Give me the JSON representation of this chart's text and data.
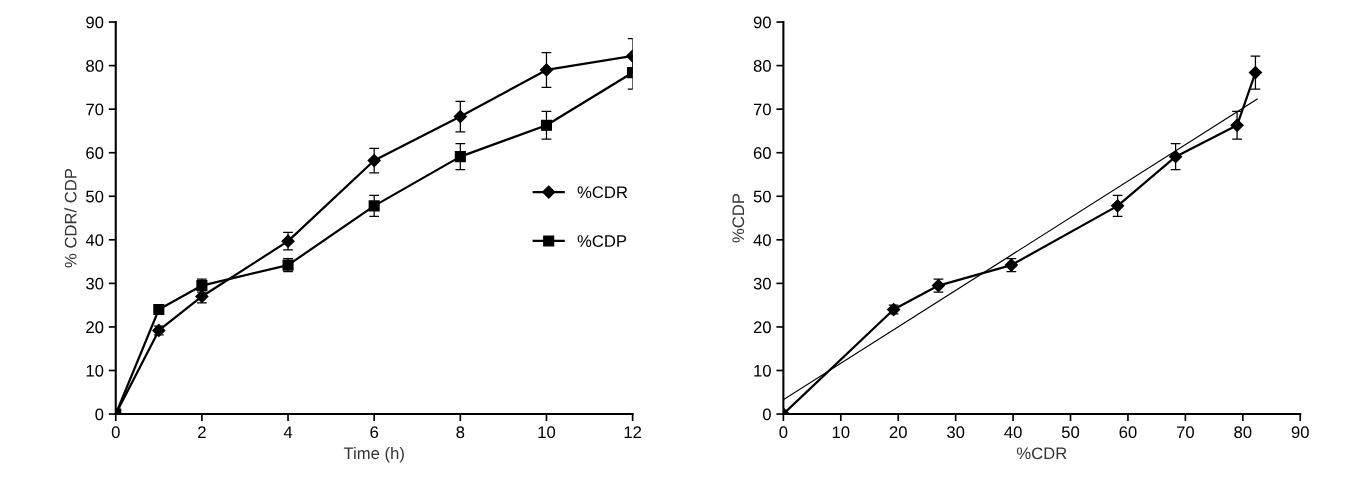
{
  "chart_data": [
    {
      "type": "line",
      "xlabel": "Time (h)",
      "ylabel": "% CDR/ CDP",
      "x": [
        0,
        1,
        2,
        4,
        6,
        8,
        10,
        12
      ],
      "xlim": [
        0,
        12
      ],
      "xticks": [
        0,
        2,
        4,
        6,
        8,
        10,
        12
      ],
      "ylim": [
        0,
        90
      ],
      "yticks": [
        0,
        10,
        20,
        30,
        40,
        50,
        60,
        70,
        80,
        90
      ],
      "grid": false,
      "legend": "right",
      "series": [
        {
          "name": "%CDR",
          "color": "#000000",
          "marker": "diamond",
          "values": [
            0,
            19.2,
            27,
            39.7,
            58.2,
            68.3,
            79,
            82.2
          ],
          "errors": [
            null,
            1,
            1.5,
            2,
            2.8,
            3.5,
            4,
            4
          ]
        },
        {
          "name": "%CDP",
          "color": "#000000",
          "marker": "square",
          "values": [
            0,
            24,
            29.5,
            34.2,
            47.8,
            59.1,
            66.3,
            78.4
          ],
          "errors": [
            null,
            1,
            1.5,
            1.5,
            2.4,
            3,
            3.2,
            3.8
          ]
        }
      ]
    },
    {
      "type": "line",
      "xlabel": "%CDR",
      "ylabel": "%CDP",
      "xlim": [
        0,
        90
      ],
      "xticks": [
        0,
        10,
        20,
        30,
        40,
        50,
        60,
        70,
        80,
        90
      ],
      "ylim": [
        0,
        90
      ],
      "yticks": [
        0,
        10,
        20,
        30,
        40,
        50,
        60,
        70,
        80,
        90
      ],
      "grid": false,
      "legend": false,
      "series": [
        {
          "color": "#000000",
          "marker": "diamond",
          "x": [
            0,
            19.2,
            27,
            39.7,
            58.2,
            68.3,
            79,
            82.2
          ],
          "values": [
            0,
            24,
            29.5,
            34.2,
            47.8,
            59.1,
            66.3,
            78.4
          ],
          "errors": [
            null,
            1,
            1.5,
            1.5,
            2.4,
            3,
            3.2,
            3.8
          ]
        },
        {
          "color": "#000000",
          "marker": "none",
          "x": [
            0,
            82.5
          ],
          "values": [
            3.3,
            72.3
          ]
        }
      ]
    }
  ]
}
